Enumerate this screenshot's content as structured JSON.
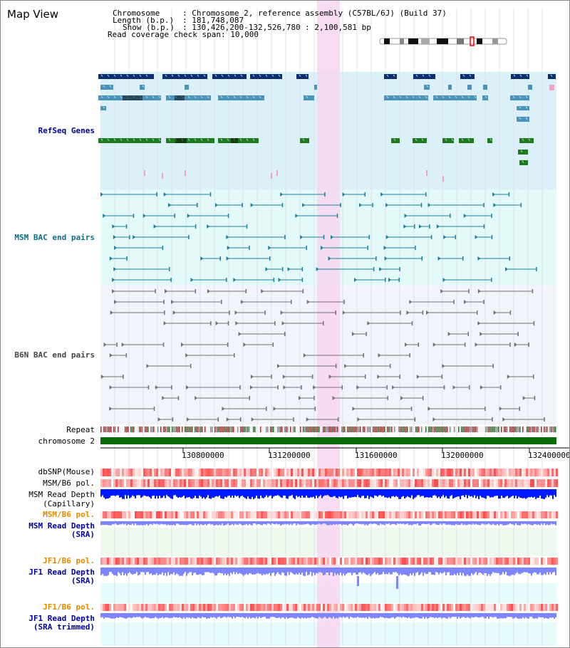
{
  "title": "Map View",
  "info": {
    "chromosome_label": "Chromosome",
    "chromosome_value": ": Chromosome 2, reference assembly (C57BL/6J) (Build 37)",
    "length_label": "Length (b.p.)",
    "length_value": ": 181,748,087",
    "show_label": "Show (b.p.)",
    "show_value": ": 130,426,200-132,526,780 : 2,100,581 bp",
    "coverage_label": "Read coverage check span",
    "coverage_value": ": 10,000"
  },
  "tracks": {
    "refseq": "RefSeq Genes",
    "msm_bac": "MSM BAC end pairs",
    "b6n_bac": "B6N BAC end pairs",
    "repeat": "Repeat",
    "chromosome": "chromosome 2",
    "dbsnp": "dbSNP(Mouse)",
    "msm_b6_pol_1": "MSM/B6 pol.",
    "msm_depth_cap_1": "MSM Read Depth",
    "msm_depth_cap_2": "(Capillary)",
    "msm_b6_pol_2": "MSM/B6 pol.",
    "msm_depth_sra_1": "MSM Read Depth",
    "msm_depth_sra_2": "(SRA)",
    "jf1_b6_pol_1": "JF1/B6 pol.",
    "jf1_depth_sra_1": "JF1 Read Depth",
    "jf1_depth_sra_2": "(SRA)",
    "jf1_b6_pol_2": "JF1/B6 pol.",
    "jf1_depth_trim_1": "JF1 Read Depth",
    "jf1_depth_trim_2": "(SRA trimmed)"
  },
  "axis": {
    "ticks": [
      "130800000",
      "131200000",
      "131600000",
      "132000000",
      "132400000"
    ]
  },
  "colors": {
    "refseq_bg": "#dcf0fa",
    "msm_bac_bg": "#e4faf8",
    "b6n_bac_bg": "#f2f4fb",
    "highlight": "#f7d6f1",
    "refseq_dark": "#0d2f6e",
    "refseq_mid": "#4b93b8",
    "refseq_green": "#1f7a1f",
    "chromosome_bar": "#0a6b0a",
    "depth_dark_blue": "#0019ff",
    "depth_light_blue": "#7e86ff"
  }
}
